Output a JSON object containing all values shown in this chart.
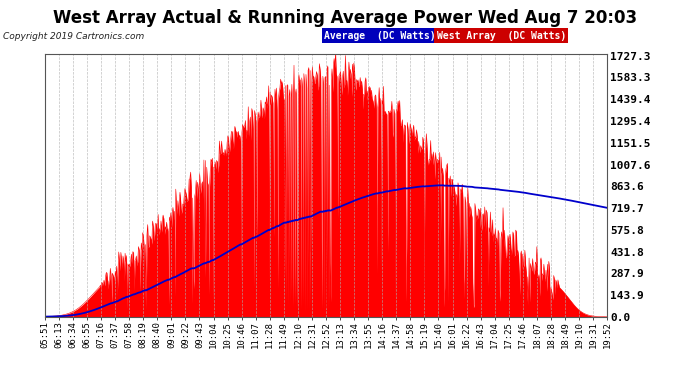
{
  "title": "West Array Actual & Running Average Power Wed Aug 7 20:03",
  "copyright": "Copyright 2019 Cartronics.com",
  "legend_avg": "Average  (DC Watts)",
  "legend_west": "West Array  (DC Watts)",
  "yticks": [
    0.0,
    143.9,
    287.9,
    431.8,
    575.8,
    719.7,
    863.6,
    1007.6,
    1151.5,
    1295.4,
    1439.4,
    1583.3,
    1727.3
  ],
  "ymax": 1727.3,
  "bg_color": "#ffffff",
  "plot_bg_color": "#ffffff",
  "grid_color": "#b0b0b0",
  "bar_color": "#ff0000",
  "avg_color": "#0000cc",
  "title_color": "#000000",
  "title_fontsize": 12,
  "xtick_fontsize": 6.5,
  "ytick_fontsize": 8,
  "x_labels": [
    "05:51",
    "06:13",
    "06:34",
    "06:55",
    "07:16",
    "07:37",
    "07:58",
    "08:19",
    "08:40",
    "09:01",
    "09:22",
    "09:43",
    "10:04",
    "10:25",
    "10:46",
    "11:07",
    "11:28",
    "11:49",
    "12:10",
    "12:31",
    "12:52",
    "13:13",
    "13:34",
    "13:55",
    "14:16",
    "14:37",
    "14:58",
    "15:19",
    "15:40",
    "16:01",
    "16:22",
    "16:43",
    "17:04",
    "17:25",
    "17:46",
    "18:07",
    "18:28",
    "18:49",
    "19:10",
    "19:31",
    "19:52"
  ]
}
